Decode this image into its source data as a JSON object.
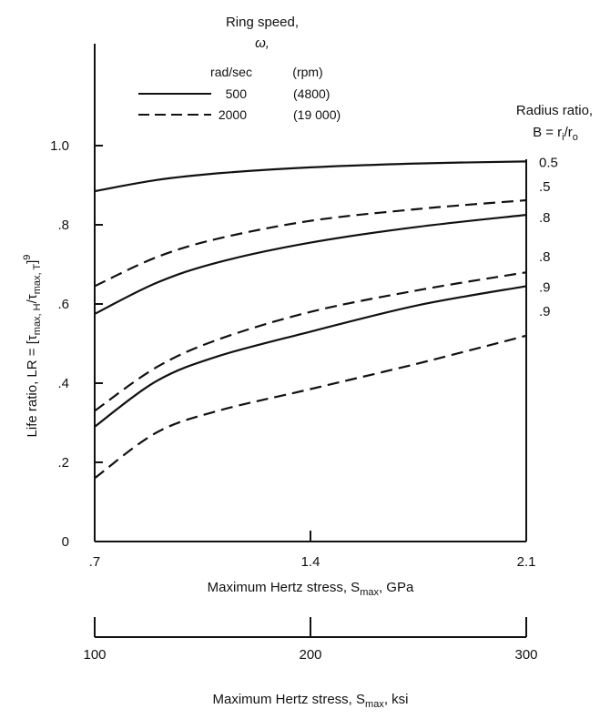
{
  "chart_data": {
    "type": "line",
    "header": {
      "line1": "Ring speed,",
      "line2": "ω,",
      "col_rad": "rad/sec",
      "col_rpm": "(rpm)"
    },
    "legend": [
      {
        "style": "solid",
        "rad_sec": "500",
        "rpm": "(4800)"
      },
      {
        "style": "dashed",
        "rad_sec": "2000",
        "rpm": "(19 000)"
      }
    ],
    "radius_header": {
      "line1": "Radius ratio,",
      "line2_main": "B = r",
      "line2_sub1": "i",
      "line2_mid": "/r",
      "line2_sub2": "o"
    },
    "ylabel": {
      "main": "Life ratio, LR = [τ",
      "sub1": "max, H",
      "mid": "/τ",
      "sub2": "max, T",
      "end": "]",
      "sup": "9"
    },
    "xlabel_gpa": {
      "main": "Maximum Hertz stress, S",
      "sub": "max",
      "end": ", GPa"
    },
    "xlabel_ksi": {
      "main": "Maximum Hertz stress, S",
      "sub": "max",
      "end": ", ksi"
    },
    "ylim": [
      0,
      1.2
    ],
    "xlim": [
      0.7,
      2.1
    ],
    "xlim_ksi": [
      100,
      300
    ],
    "y_ticks": [
      {
        "value": 0,
        "label": "0"
      },
      {
        "value": 0.2,
        "label": ".2"
      },
      {
        "value": 0.4,
        "label": ".4"
      },
      {
        "value": 0.6,
        "label": ".6"
      },
      {
        "value": 0.8,
        "label": ".8"
      },
      {
        "value": 1.0,
        "label": "1.0"
      }
    ],
    "x_ticks": [
      {
        "value": 0.7,
        "label": ".7"
      },
      {
        "value": 1.4,
        "label": "1.4"
      },
      {
        "value": 2.1,
        "label": "2.1"
      }
    ],
    "x_ticks_ksi": [
      {
        "value": 100,
        "label": "100"
      },
      {
        "value": 200,
        "label": "200"
      },
      {
        "value": 300,
        "label": "300"
      }
    ],
    "series": [
      {
        "style": "solid",
        "label": "0.5",
        "x": [
          0.7,
          0.9,
          1.1,
          1.4,
          1.75,
          2.1
        ],
        "y": [
          0.885,
          0.913,
          0.93,
          0.945,
          0.955,
          0.96
        ]
      },
      {
        "style": "dashed",
        "label": ".5",
        "x": [
          0.7,
          0.9,
          1.1,
          1.4,
          1.75,
          2.1
        ],
        "y": [
          0.645,
          0.718,
          0.765,
          0.81,
          0.84,
          0.862
        ]
      },
      {
        "style": "solid",
        "label": ".8",
        "x": [
          0.7,
          0.9,
          1.1,
          1.4,
          1.75,
          2.1
        ],
        "y": [
          0.575,
          0.653,
          0.705,
          0.755,
          0.795,
          0.825
        ]
      },
      {
        "style": "dashed",
        "label": ".8",
        "x": [
          0.7,
          0.9,
          1.1,
          1.4,
          1.75,
          2.1
        ],
        "y": [
          0.33,
          0.44,
          0.51,
          0.58,
          0.635,
          0.68
        ]
      },
      {
        "style": "solid",
        "label": ".9",
        "x": [
          0.7,
          0.9,
          1.1,
          1.4,
          1.75,
          2.1
        ],
        "y": [
          0.29,
          0.405,
          0.468,
          0.53,
          0.597,
          0.645
        ]
      },
      {
        "style": "dashed",
        "label": ".9",
        "x": [
          0.7,
          0.9,
          1.1,
          1.4,
          1.75,
          2.1
        ],
        "y": [
          0.16,
          0.275,
          0.33,
          0.385,
          0.45,
          0.52
        ]
      }
    ]
  }
}
